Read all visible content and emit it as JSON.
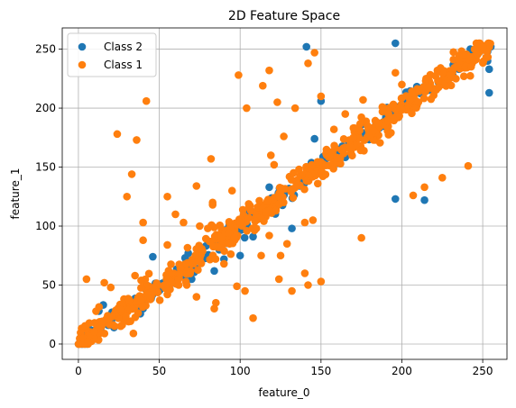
{
  "chart_data": {
    "type": "scatter",
    "title": "2D Feature Space",
    "xlabel": "feature_0",
    "ylabel": "feature_1",
    "xlim": [
      -10,
      265
    ],
    "ylim": [
      -13,
      268
    ],
    "xticks": [
      0,
      50,
      100,
      150,
      200,
      250
    ],
    "yticks": [
      0,
      50,
      100,
      150,
      200,
      250
    ],
    "grid": true,
    "legend_position": "top-left",
    "series": [
      {
        "name": "Class 2",
        "color": "#1f77b4",
        "trend": {
          "x_range": [
            0,
            255
          ],
          "jitter": 5,
          "count": 220,
          "seed": 11
        },
        "points": [
          [
            141,
            252
          ],
          [
            196,
            255
          ],
          [
            150,
            206
          ],
          [
            146,
            174
          ],
          [
            196,
            123
          ],
          [
            186,
            183
          ],
          [
            214,
            122
          ],
          [
            254,
            213
          ],
          [
            254,
            233
          ],
          [
            253,
            240
          ],
          [
            252,
            250
          ],
          [
            255,
            252
          ],
          [
            140,
            137
          ],
          [
            132,
            98
          ],
          [
            126,
            131
          ],
          [
            118,
            133
          ],
          [
            108,
            91
          ],
          [
            100,
            75
          ],
          [
            90,
            72
          ],
          [
            84,
            62
          ],
          [
            70,
            55
          ],
          [
            62,
            60
          ],
          [
            46,
            74
          ],
          [
            40,
            30
          ],
          [
            36,
            38
          ],
          [
            22,
            14
          ],
          [
            12,
            8
          ],
          [
            4,
            3
          ],
          [
            2,
            0
          ]
        ]
      },
      {
        "name": "Class 1",
        "color": "#ff7f0e",
        "trend": {
          "x_range": [
            0,
            255
          ],
          "jitter": 6,
          "count": 560,
          "seed": 7
        },
        "points": [
          [
            24,
            178
          ],
          [
            36,
            173
          ],
          [
            42,
            206
          ],
          [
            33,
            144
          ],
          [
            30,
            125
          ],
          [
            40,
            103
          ],
          [
            55,
            125
          ],
          [
            60,
            110
          ],
          [
            65,
            103
          ],
          [
            73,
            134
          ],
          [
            82,
            157
          ],
          [
            83,
            120
          ],
          [
            75,
            100
          ],
          [
            80,
            98
          ],
          [
            99,
            228
          ],
          [
            104,
            200
          ],
          [
            114,
            219
          ],
          [
            118,
            232
          ],
          [
            123,
            205
          ],
          [
            142,
            238
          ],
          [
            146,
            247
          ],
          [
            150,
            210
          ],
          [
            134,
            200
          ],
          [
            127,
            176
          ],
          [
            119,
            160
          ],
          [
            121,
            152
          ],
          [
            110,
            98
          ],
          [
            113,
            75
          ],
          [
            118,
            92
          ],
          [
            125,
            75
          ],
          [
            124,
            55
          ],
          [
            132,
            45
          ],
          [
            140,
            60
          ],
          [
            142,
            50
          ],
          [
            150,
            53
          ],
          [
            129,
            85
          ],
          [
            140,
            103
          ],
          [
            145,
            105
          ],
          [
            175,
            90
          ],
          [
            196,
            230
          ],
          [
            207,
            126
          ],
          [
            225,
            141
          ],
          [
            241,
            151
          ],
          [
            214,
            133
          ],
          [
            90,
            68
          ],
          [
            85,
            35
          ],
          [
            84,
            30
          ],
          [
            73,
            40
          ],
          [
            62,
            50
          ],
          [
            55,
            42
          ],
          [
            55,
            84
          ],
          [
            40,
            88
          ],
          [
            35,
            58
          ],
          [
            34,
            9
          ],
          [
            20,
            48
          ],
          [
            16,
            52
          ],
          [
            5,
            55
          ],
          [
            10,
            18
          ],
          [
            67,
            50
          ],
          [
            98,
            49
          ],
          [
            103,
            45
          ],
          [
            108,
            22
          ],
          [
            100,
            103
          ],
          [
            95,
            130
          ],
          [
            83,
            118
          ],
          [
            158,
            182
          ],
          [
            160,
            158
          ],
          [
            170,
            175
          ],
          [
            165,
            195
          ],
          [
            176,
            207
          ],
          [
            188,
            197
          ],
          [
            200,
            220
          ],
          [
            205,
            207
          ],
          [
            215,
            225
          ],
          [
            222,
            232
          ],
          [
            230,
            228
          ],
          [
            238,
            245
          ],
          [
            245,
            250
          ],
          [
            250,
            252
          ],
          [
            1,
            1
          ],
          [
            3,
            5
          ],
          [
            6,
            2
          ]
        ]
      }
    ]
  }
}
